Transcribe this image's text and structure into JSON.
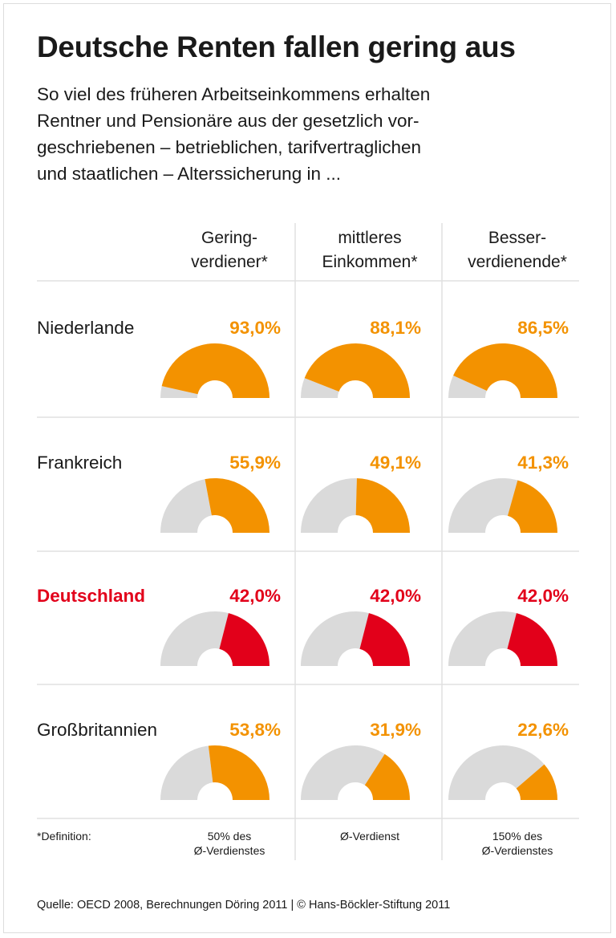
{
  "title": "Deutsche Renten fallen gering aus",
  "subtitle_lines": [
    "So viel des früheren Arbeitseinkommens erhalten",
    "Rentner und Pensionäre aus der gesetzlich vor-",
    "geschriebenen – betrieblichen, tarifvertraglichen",
    "und staatlichen – Alterssicherung in ..."
  ],
  "source": "Quelle: OECD 2008, Berechnungen Döring 2011 | © Hans-Böckler-Stiftung 2011",
  "colors": {
    "orange": "#F39200",
    "red": "#E2001A",
    "grey": "#DADADA",
    "divider": "#E0E0E0"
  },
  "chart_data": {
    "type": "half-donut-grid",
    "unit": "%",
    "columns": [
      {
        "header": [
          "Gering-",
          "verdiener*"
        ],
        "definition": [
          "50% des",
          "Ø-Verdienstes"
        ]
      },
      {
        "header": [
          "mittleres",
          "Einkommen*"
        ],
        "definition": [
          "Ø-Verdienst"
        ]
      },
      {
        "header": [
          "Besser-",
          "verdienende*"
        ],
        "definition": [
          "150% des",
          "Ø-Verdienstes"
        ]
      }
    ],
    "definition_label": "*Definition:",
    "rows": [
      {
        "country": "Niederlande",
        "values": [
          93.0,
          88.1,
          86.5
        ],
        "labels": [
          "93,0%",
          "88,1%",
          "86,5%"
        ],
        "highlight": false
      },
      {
        "country": "Frankreich",
        "values": [
          55.9,
          49.1,
          41.3
        ],
        "labels": [
          "55,9%",
          "49,1%",
          "41,3%"
        ],
        "highlight": false
      },
      {
        "country": "Deutschland",
        "values": [
          42.0,
          42.0,
          42.0
        ],
        "labels": [
          "42,0%",
          "42,0%",
          "42,0%"
        ],
        "highlight": true
      },
      {
        "country": "Großbritannien",
        "values": [
          53.8,
          31.9,
          22.6
        ],
        "labels": [
          "53,8%",
          "31,9%",
          "22,6%"
        ],
        "highlight": false
      }
    ]
  }
}
